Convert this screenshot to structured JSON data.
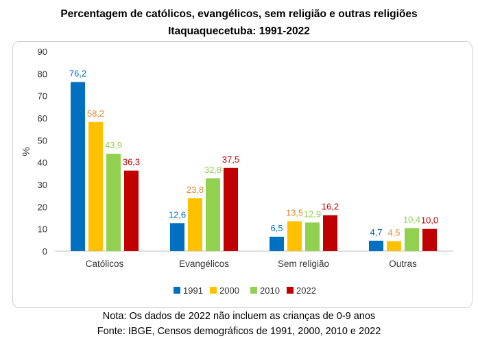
{
  "chart_data": {
    "type": "bar",
    "title": "Percentagem de católicos, evangélicos, sem religião e outras religiões",
    "subtitle": "Itaquaquecetuba: 1991-2022",
    "xlabel": "",
    "ylabel": "%",
    "ylim": [
      0,
      90
    ],
    "yticks": [
      "0",
      "10",
      "20",
      "30",
      "40",
      "50",
      "60",
      "70",
      "80",
      "90"
    ],
    "categories": [
      "Católicos",
      "Evangélicos",
      "Sem religião",
      "Outras"
    ],
    "series": [
      {
        "name": "1991",
        "color": "#0070c0",
        "values": [
          76.2,
          12.6,
          6.5,
          4.7
        ],
        "labels": [
          "76,2",
          "12,6",
          "6,5",
          "4,7"
        ]
      },
      {
        "name": "2000",
        "color": "#ffc000",
        "values": [
          58.2,
          23.8,
          13.5,
          4.5
        ],
        "labels": [
          "58,2",
          "23,8",
          "13,5",
          "4,5"
        ]
      },
      {
        "name": "2010",
        "color": "#92d050",
        "values": [
          43.9,
          32.8,
          12.9,
          10.4
        ],
        "labels": [
          "43,9",
          "32,8",
          "12,9",
          "10,4"
        ]
      },
      {
        "name": "2022",
        "color": "#c00000",
        "values": [
          36.3,
          37.5,
          16.2,
          10.0
        ],
        "labels": [
          "36,3",
          "37,5",
          "16,2",
          "10,0"
        ]
      }
    ],
    "label_colors": [
      "#0070c0",
      "#e7872b",
      "#92d050",
      "#c00000"
    ],
    "grid": false,
    "legend": "bottom"
  },
  "notes": {
    "line1": "Nota: Os dados de 2022 não incluem as crianças de 0-9 anos",
    "line2": "Fonte: IBGE, Censos demográficos de 1991, 2000, 2010 e 2022"
  }
}
